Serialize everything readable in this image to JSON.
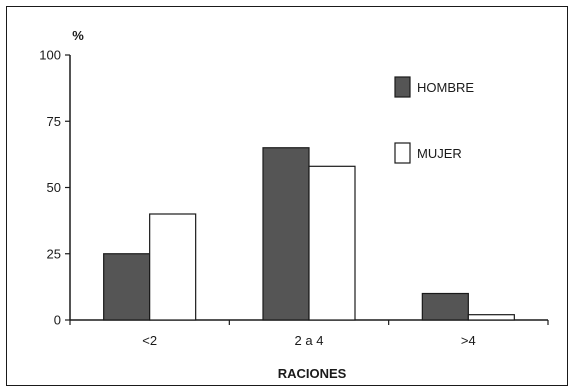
{
  "chart_data": {
    "type": "bar",
    "title": "",
    "xlabel": "RACIONES",
    "ylabel": "%",
    "ylim": [
      0,
      100
    ],
    "yticks": [
      "0",
      "25",
      "50",
      "75",
      "100"
    ],
    "categories": [
      "<2",
      "2 a 4",
      ">4"
    ],
    "series": [
      {
        "name": "HOMBRE",
        "values": [
          25,
          65,
          10
        ],
        "color": "#555555"
      },
      {
        "name": "MUJER",
        "values": [
          40,
          58,
          2
        ],
        "color": "#ffffff"
      }
    ],
    "legend_position": "top-right",
    "grid": false
  }
}
